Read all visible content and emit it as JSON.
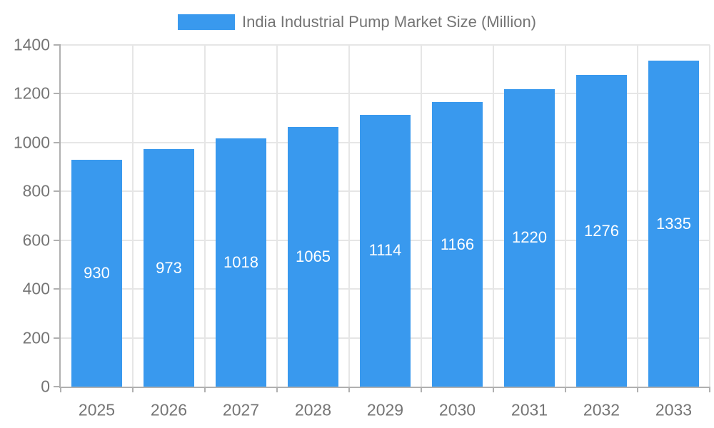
{
  "chart_data": {
    "type": "bar",
    "title": "India Industrial Pump Market Size (Million)",
    "categories": [
      "2025",
      "2026",
      "2027",
      "2028",
      "2029",
      "2030",
      "2031",
      "2032",
      "2033"
    ],
    "values": [
      930,
      973,
      1018,
      1065,
      1114,
      1166,
      1220,
      1276,
      1335
    ],
    "series": [
      {
        "name": "India Industrial Pump Market Size (Million)",
        "values": [
          930,
          973,
          1018,
          1065,
          1114,
          1166,
          1220,
          1276,
          1335
        ]
      }
    ],
    "xlabel": "",
    "ylabel": "",
    "ylim": [
      0,
      1400
    ],
    "y_ticks": [
      0,
      200,
      400,
      600,
      800,
      1000,
      1200,
      1400
    ],
    "grid": true,
    "legend_position": "top",
    "value_label_position": "inside-center",
    "colors": {
      "bar": "#3999ee",
      "bar_label_text": "#ffffff",
      "axis_text": "#757575",
      "grid_line": "#e6e6e6",
      "axis_line": "#b0b0b0",
      "background": "#ffffff"
    }
  }
}
